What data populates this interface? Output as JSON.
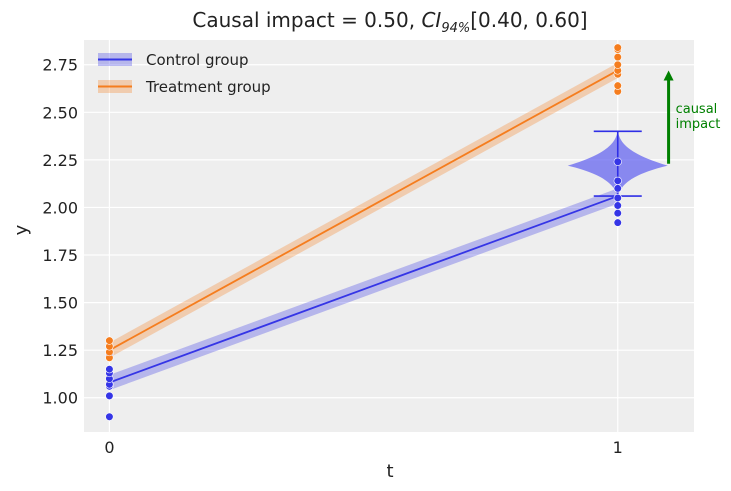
{
  "chart_data": {
    "type": "line",
    "title_prefix": "Causal impact = 0.50, ",
    "title_ci": "CI",
    "title_ci_sub": "94%",
    "title_interval": "[0.40, 0.60]",
    "xlabel": "t",
    "ylabel": "y",
    "x_ticks": [
      0,
      1
    ],
    "x_tick_labels": [
      "0",
      "1"
    ],
    "y_ticks": [
      1.0,
      1.25,
      1.5,
      1.75,
      2.0,
      2.25,
      2.5,
      2.75
    ],
    "y_tick_labels": [
      "1.00",
      "1.25",
      "1.50",
      "1.75",
      "2.00",
      "2.25",
      "2.50",
      "2.75"
    ],
    "xlim": [
      -0.05,
      1.15
    ],
    "ylim": [
      0.82,
      2.88
    ],
    "grid": true,
    "legend_position": "top-left",
    "series": [
      {
        "name": "Control group",
        "color": "#3535e6",
        "x": [
          0,
          1
        ],
        "mean": [
          1.08,
          2.06
        ],
        "lower": [
          1.04,
          2.02
        ],
        "upper": [
          1.12,
          2.1
        ],
        "points": [
          {
            "x": 0,
            "y": 0.9
          },
          {
            "x": 0,
            "y": 1.01
          },
          {
            "x": 0,
            "y": 1.06
          },
          {
            "x": 0,
            "y": 1.07
          },
          {
            "x": 0,
            "y": 1.1
          },
          {
            "x": 0,
            "y": 1.13
          },
          {
            "x": 0,
            "y": 1.15
          },
          {
            "x": 0,
            "y": 1.23
          },
          {
            "x": 1,
            "y": 1.92
          },
          {
            "x": 1,
            "y": 1.97
          },
          {
            "x": 1,
            "y": 2.01
          },
          {
            "x": 1,
            "y": 2.05
          },
          {
            "x": 1,
            "y": 2.1
          },
          {
            "x": 1,
            "y": 2.14
          },
          {
            "x": 1,
            "y": 2.24
          }
        ]
      },
      {
        "name": "Treatment group",
        "color": "#f57d1e",
        "x": [
          0,
          1
        ],
        "mean": [
          1.25,
          2.72
        ],
        "lower": [
          1.21,
          2.68
        ],
        "upper": [
          1.29,
          2.76
        ],
        "points": [
          {
            "x": 0,
            "y": 1.21
          },
          {
            "x": 0,
            "y": 1.24
          },
          {
            "x": 0,
            "y": 1.27
          },
          {
            "x": 0,
            "y": 1.3
          },
          {
            "x": 1,
            "y": 2.61
          },
          {
            "x": 1,
            "y": 2.64
          },
          {
            "x": 1,
            "y": 2.7
          },
          {
            "x": 1,
            "y": 2.72
          },
          {
            "x": 1,
            "y": 2.75
          },
          {
            "x": 1,
            "y": 2.79
          },
          {
            "x": 1,
            "y": 2.83
          },
          {
            "x": 1,
            "y": 2.84
          }
        ]
      }
    ],
    "counterfactual_violin": {
      "x": 1,
      "min": 2.06,
      "max": 2.4,
      "mode": 2.22,
      "color": "#5c5cf0",
      "line_color": "#2f2fe6"
    },
    "annotation": {
      "text_line1": "causal",
      "text_line2": "impact",
      "color": "#008000",
      "x": 1.1,
      "y_from": 2.23,
      "y_to": 2.72
    }
  }
}
